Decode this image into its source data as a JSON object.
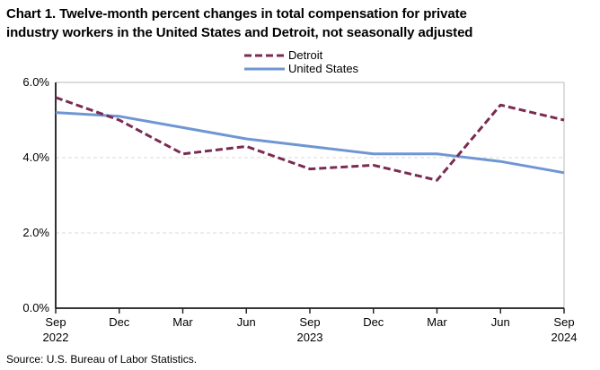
{
  "header": {
    "title_lines": [
      "Chart 1. Twelve-month percent changes in total compensation for private",
      "industry workers in the United States and Detroit, not seasonally adjusted"
    ]
  },
  "source_note": "Source: U.S. Bureau of Labor Statistics.",
  "chart_data": {
    "type": "line",
    "title": "Chart 1. Twelve-month percent changes in total compensation for private industry workers in the United States and Detroit, not seasonally adjusted",
    "categories": [
      "Sep",
      "Dec",
      "Mar",
      "Jun",
      "Sep",
      "Dec",
      "Mar",
      "Jun",
      "Sep"
    ],
    "category_years": [
      {
        "index": 0,
        "year": "2022"
      },
      {
        "index": 4,
        "year": "2023"
      },
      {
        "index": 8,
        "year": "2024"
      }
    ],
    "series": [
      {
        "name": "Detroit",
        "style": "dashed",
        "color": "#7A2B51",
        "values": [
          5.6,
          5.0,
          4.1,
          4.3,
          3.7,
          3.8,
          3.4,
          5.4,
          5.0
        ]
      },
      {
        "name": "United States",
        "style": "solid",
        "color": "#6F96D3",
        "values": [
          5.2,
          5.1,
          4.8,
          4.5,
          4.3,
          4.1,
          4.1,
          3.9,
          3.6
        ]
      }
    ],
    "xlabel": "",
    "ylabel": "",
    "ylim": [
      0,
      6
    ],
    "yticks": [
      {
        "value": 0,
        "label": "0.0%"
      },
      {
        "value": 2,
        "label": "2.0%"
      },
      {
        "value": 4,
        "label": "4.0%"
      },
      {
        "value": 6,
        "label": "6.0%"
      }
    ],
    "grid": "horizontal dashed gridlines at 2.0% and 4.0%, light solid top and right plot border",
    "legend_position": "top-center",
    "colors": {
      "axis": "#1a1a1a",
      "gridline": "#d9d9d9",
      "border": "#c6c6c6",
      "background": "#ffffff"
    }
  }
}
